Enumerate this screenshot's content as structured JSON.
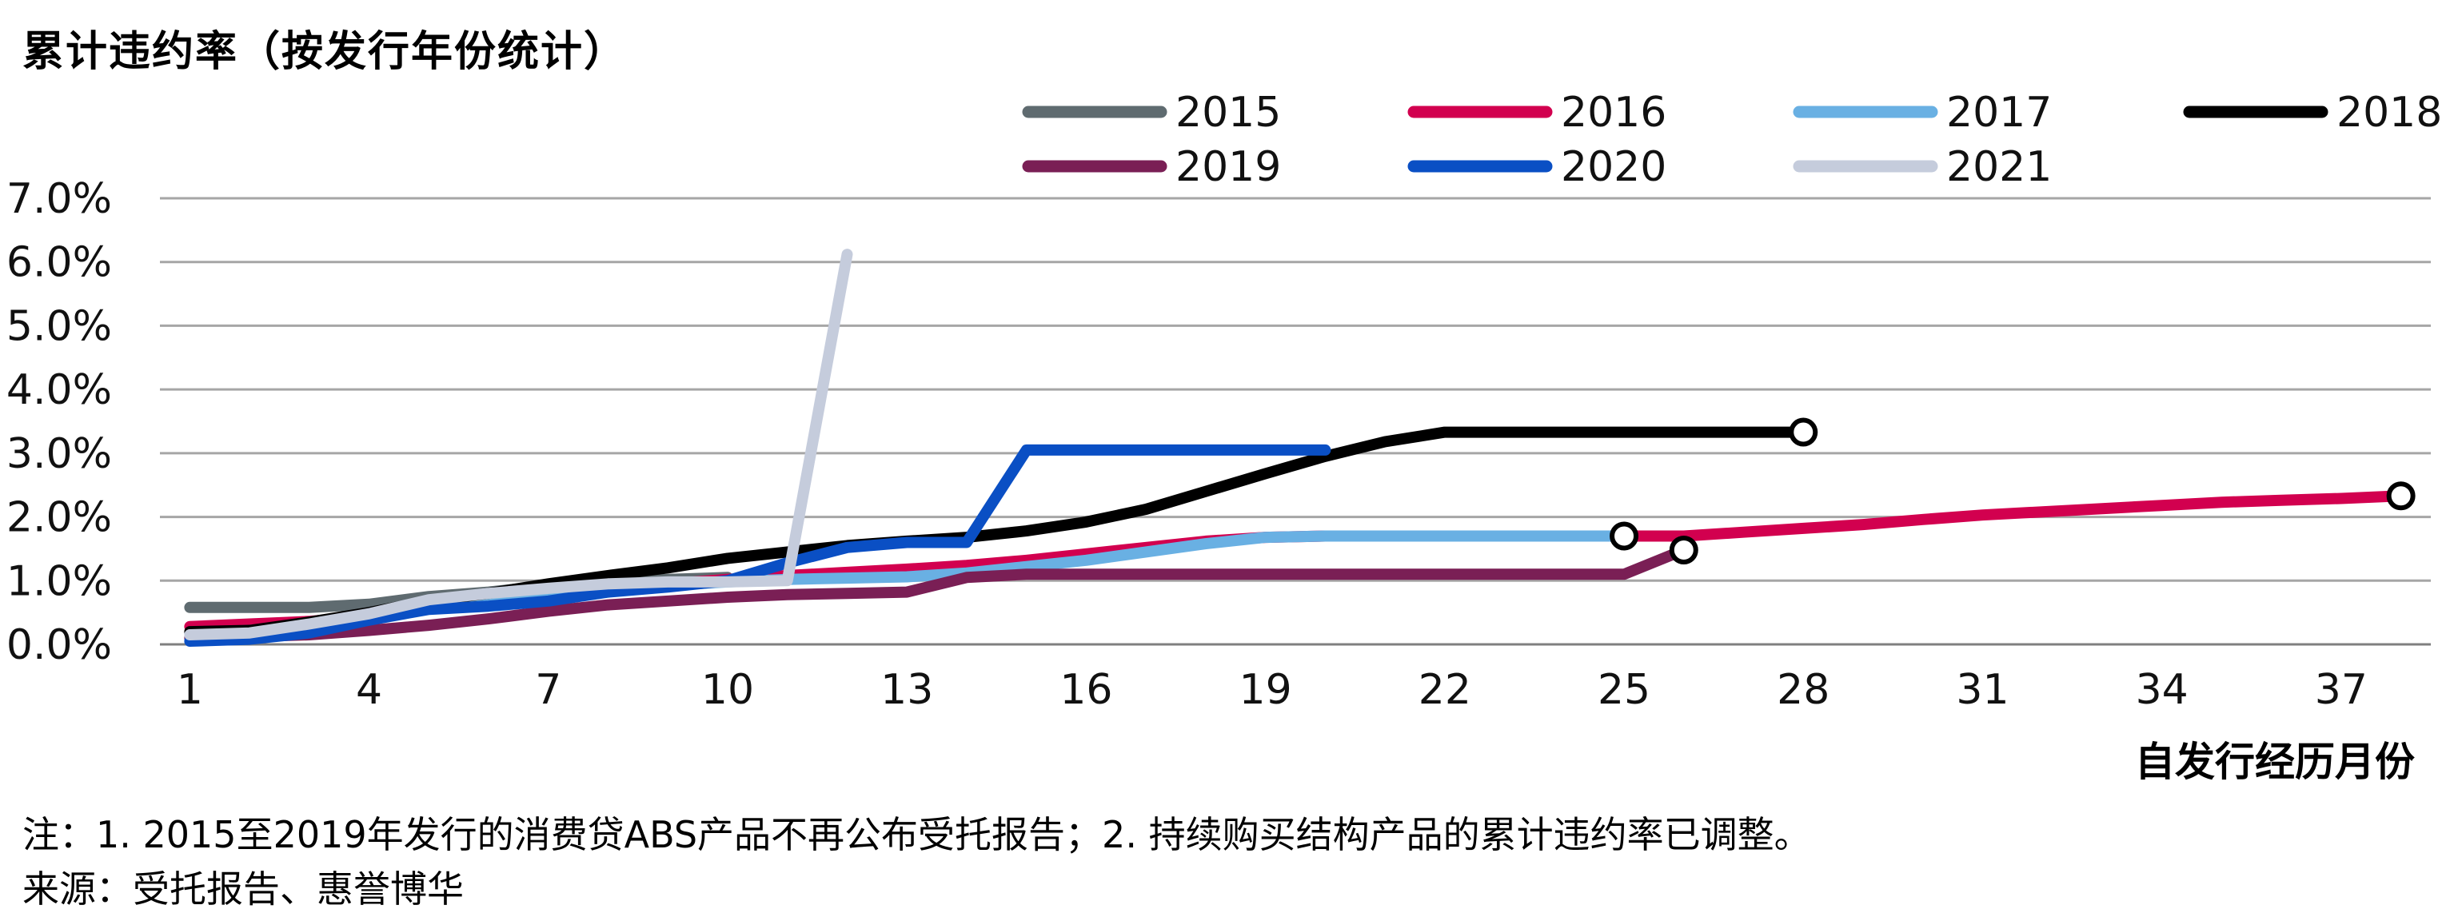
{
  "chart_data": {
    "type": "line",
    "title": "累计违约率（按发行年份统计）",
    "xlabel": "自发行经历月份",
    "ylabel": "",
    "xlim": [
      0.5,
      38.5
    ],
    "ylim": [
      0,
      0.07
    ],
    "x_ticks": [
      1,
      4,
      7,
      10,
      13,
      16,
      19,
      22,
      25,
      28,
      31,
      34,
      37
    ],
    "x_tick_labels": [
      "1",
      "4",
      "7",
      "10",
      "13",
      "16",
      "19",
      "22",
      "25",
      "28",
      "31",
      "34",
      "37"
    ],
    "y_ticks": [
      0,
      0.01,
      0.02,
      0.03,
      0.04,
      0.05,
      0.06,
      0.07
    ],
    "y_tick_labels": [
      "0.0%",
      "1.0%",
      "2.0%",
      "3.0%",
      "4.0%",
      "5.0%",
      "6.0%",
      "7.0%"
    ],
    "grid": "horizontal",
    "legend_position": "top-right",
    "series": [
      {
        "name": "2015",
        "color": "#5f6b70",
        "x": [
          1,
          2,
          3,
          4,
          5,
          6,
          7,
          8,
          9,
          10
        ],
        "y": [
          0.0058,
          0.0058,
          0.0058,
          0.0063,
          0.0075,
          0.0082,
          0.0092,
          0.0098,
          0.0102,
          0.0105
        ],
        "end_marker": false
      },
      {
        "name": "2016",
        "color": "#d2004f",
        "x": [
          1,
          2,
          3,
          4,
          5,
          6,
          7,
          8,
          9,
          10,
          11,
          12,
          13,
          14,
          15,
          16,
          17,
          18,
          19,
          20,
          21,
          22,
          23,
          24,
          25,
          26,
          27,
          28,
          29,
          30,
          31,
          32,
          33,
          34,
          35,
          36,
          37,
          38
        ],
        "y": [
          0.0028,
          0.0032,
          0.0036,
          0.0045,
          0.0058,
          0.0068,
          0.0078,
          0.0088,
          0.0095,
          0.0102,
          0.0108,
          0.0113,
          0.0118,
          0.0124,
          0.0132,
          0.0142,
          0.0152,
          0.0162,
          0.0168,
          0.017,
          0.017,
          0.017,
          0.017,
          0.017,
          0.017,
          0.017,
          0.0176,
          0.0182,
          0.0188,
          0.0196,
          0.0203,
          0.0208,
          0.0213,
          0.0218,
          0.0223,
          0.0226,
          0.0229,
          0.0233
        ],
        "end_marker": true
      },
      {
        "name": "2017",
        "color": "#69b0e3",
        "x": [
          1,
          2,
          3,
          4,
          5,
          6,
          7,
          8,
          9,
          10,
          11,
          12,
          13,
          14,
          15,
          16,
          17,
          18,
          19,
          20,
          21,
          22,
          23,
          24,
          25
        ],
        "y": [
          0.0018,
          0.0022,
          0.003,
          0.0045,
          0.006,
          0.0068,
          0.0078,
          0.0088,
          0.0093,
          0.0098,
          0.0102,
          0.0104,
          0.0106,
          0.0112,
          0.0122,
          0.0132,
          0.0145,
          0.0158,
          0.0168,
          0.017,
          0.017,
          0.017,
          0.017,
          0.017,
          0.017
        ],
        "end_marker": true
      },
      {
        "name": "2018",
        "color": "#000000",
        "x": [
          1,
          2,
          3,
          4,
          5,
          6,
          7,
          8,
          9,
          10,
          11,
          12,
          13,
          14,
          15,
          16,
          17,
          18,
          19,
          20,
          21,
          22,
          23,
          24,
          25,
          26,
          27,
          28
        ],
        "y": [
          0.002,
          0.0022,
          0.0035,
          0.005,
          0.0068,
          0.008,
          0.0095,
          0.0108,
          0.012,
          0.0135,
          0.0145,
          0.0155,
          0.0162,
          0.0168,
          0.0178,
          0.0192,
          0.0212,
          0.024,
          0.0268,
          0.0295,
          0.0318,
          0.0333,
          0.0333,
          0.0333,
          0.0333,
          0.0333,
          0.0333,
          0.0333
        ],
        "end_marker": true
      },
      {
        "name": "2019",
        "color": "#7a1f55",
        "x": [
          1,
          2,
          3,
          4,
          5,
          6,
          7,
          8,
          9,
          10,
          11,
          12,
          13,
          14,
          15,
          16,
          17,
          18,
          19,
          20,
          21,
          22,
          23,
          24,
          25,
          26
        ],
        "y": [
          0.001,
          0.0012,
          0.0015,
          0.0022,
          0.003,
          0.004,
          0.0052,
          0.0062,
          0.0068,
          0.0074,
          0.0078,
          0.008,
          0.0082,
          0.0105,
          0.011,
          0.011,
          0.011,
          0.011,
          0.011,
          0.011,
          0.011,
          0.011,
          0.011,
          0.011,
          0.011,
          0.0148
        ],
        "end_marker": true
      },
      {
        "name": "2020",
        "color": "#0a4fc4",
        "x": [
          1,
          2,
          3,
          4,
          5,
          6,
          7,
          8,
          9,
          10,
          11,
          12,
          13,
          14,
          15,
          16,
          17,
          18,
          19,
          20
        ],
        "y": [
          0.0005,
          0.0008,
          0.0018,
          0.0038,
          0.0055,
          0.006,
          0.0068,
          0.0082,
          0.009,
          0.01,
          0.0128,
          0.0152,
          0.016,
          0.016,
          0.0305,
          0.0305,
          0.0305,
          0.0305,
          0.0305,
          0.0305
        ],
        "end_marker": false
      },
      {
        "name": "2021",
        "color": "#c5ccdc",
        "x": [
          1,
          2,
          3,
          4,
          5,
          6,
          7,
          8,
          9,
          10,
          11,
          12
        ],
        "y": [
          0.0015,
          0.0018,
          0.0032,
          0.0048,
          0.007,
          0.008,
          0.0088,
          0.0095,
          0.0098,
          0.0098,
          0.01,
          0.0612
        ],
        "end_marker": false
      }
    ]
  },
  "footer": {
    "note": "注：1. 2015至2019年发行的消费贷ABS产品不再公布受托报告；2. 持续购买结构产品的累计违约率已调整。",
    "source": "来源：受托报告、惠誉博华"
  },
  "colors": {
    "grid": "#a6a6a6",
    "axis": "#7f7f7f",
    "text": "#111111",
    "marker_fill": "#ffffff",
    "marker_stroke": "#000000"
  }
}
